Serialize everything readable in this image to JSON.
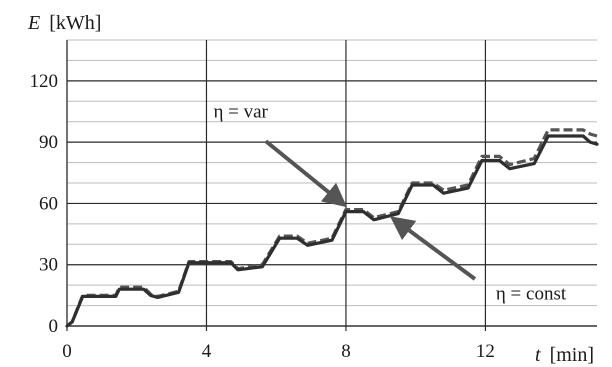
{
  "chart_data": {
    "type": "line",
    "ylabel_var": "E",
    "ylabel_unit": "[kWh]",
    "xlabel_var": "t",
    "xlabel_unit": "[min]",
    "xlim": [
      0,
      15.2
    ],
    "ylim": [
      0,
      140
    ],
    "x_major_ticks": [
      0,
      4,
      8,
      12
    ],
    "y_major_ticks": [
      0,
      30,
      60,
      90,
      120
    ],
    "x_tick_labels": [
      "0",
      "4",
      "8",
      "12"
    ],
    "y_tick_labels": [
      "0",
      "30",
      "60",
      "90",
      "120"
    ],
    "grid": "major and minor horizontal, major vertical",
    "series": [
      {
        "style": "dashed",
        "color": "#555555",
        "points": [
          [
            0,
            0
          ],
          [
            0.15,
            2
          ],
          [
            0.45,
            15
          ],
          [
            1.4,
            15
          ],
          [
            1.5,
            19
          ],
          [
            2.2,
            19
          ],
          [
            2.4,
            15.5
          ],
          [
            2.6,
            14.5
          ],
          [
            3.2,
            17
          ],
          [
            3.5,
            31.5
          ],
          [
            4.7,
            31.5
          ],
          [
            4.9,
            28
          ],
          [
            5.6,
            30
          ],
          [
            6.1,
            44
          ],
          [
            6.6,
            44
          ],
          [
            6.9,
            40.5
          ],
          [
            7.6,
            43
          ],
          [
            8.0,
            57
          ],
          [
            8.5,
            57
          ],
          [
            8.8,
            53
          ],
          [
            9.5,
            56
          ],
          [
            9.9,
            70
          ],
          [
            10.5,
            70
          ],
          [
            10.8,
            66.5
          ],
          [
            11.5,
            69
          ],
          [
            11.9,
            83
          ],
          [
            12.4,
            83
          ],
          [
            12.7,
            79
          ],
          [
            13.4,
            82
          ],
          [
            13.8,
            96
          ],
          [
            14.8,
            96
          ],
          [
            15.0,
            94
          ],
          [
            15.2,
            93
          ]
        ]
      },
      {
        "style": "solid",
        "color": "#2f2f2f",
        "points": [
          [
            0,
            0
          ],
          [
            0.15,
            2
          ],
          [
            0.45,
            14.5
          ],
          [
            1.4,
            14.5
          ],
          [
            1.5,
            18
          ],
          [
            2.2,
            18
          ],
          [
            2.4,
            15
          ],
          [
            2.6,
            14
          ],
          [
            3.2,
            16.5
          ],
          [
            3.5,
            31
          ],
          [
            4.7,
            31
          ],
          [
            4.9,
            27.5
          ],
          [
            5.6,
            29
          ],
          [
            6.1,
            43
          ],
          [
            6.6,
            43
          ],
          [
            6.9,
            39.5
          ],
          [
            7.6,
            42
          ],
          [
            8.0,
            56
          ],
          [
            8.5,
            56
          ],
          [
            8.8,
            52
          ],
          [
            9.5,
            55
          ],
          [
            9.9,
            69
          ],
          [
            10.5,
            69
          ],
          [
            10.8,
            65
          ],
          [
            11.5,
            67.5
          ],
          [
            11.9,
            81
          ],
          [
            12.4,
            81
          ],
          [
            12.7,
            77
          ],
          [
            13.4,
            79.5
          ],
          [
            13.8,
            93
          ],
          [
            14.8,
            93
          ],
          [
            15.0,
            90
          ],
          [
            15.2,
            89
          ]
        ]
      }
    ],
    "annotations": [
      {
        "text": "η = var",
        "text_x": 4.2,
        "text_y": 102,
        "arrow_from": [
          5.7,
          90.5
        ],
        "arrow_to": [
          7.9,
          60
        ]
      },
      {
        "text": "η = const",
        "text_x": 12.3,
        "text_y": 13,
        "arrow_from": [
          11.7,
          23
        ],
        "arrow_to": [
          9.4,
          52
        ]
      }
    ]
  }
}
